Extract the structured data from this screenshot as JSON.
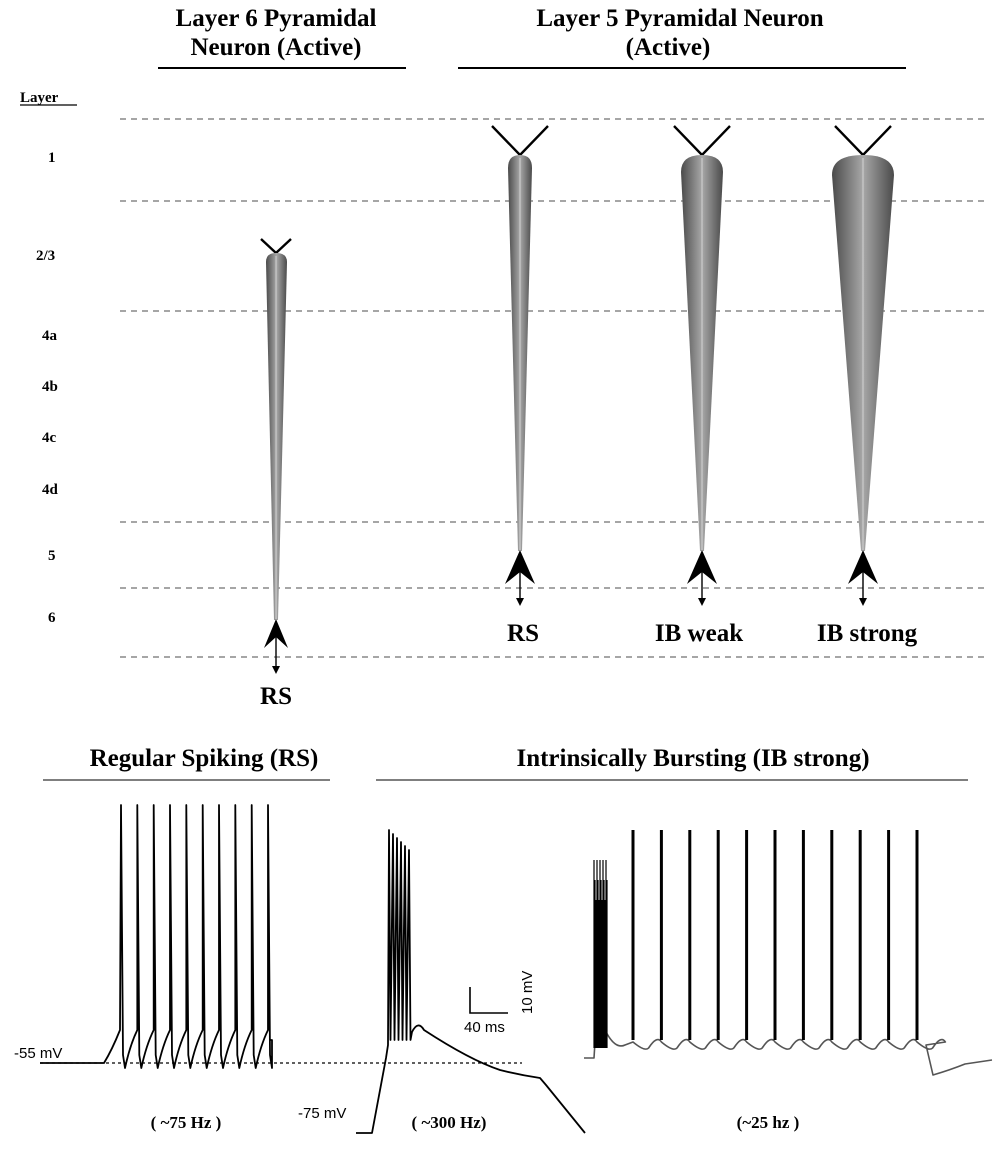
{
  "headers": {
    "layer6": [
      "Layer 6 Pyramidal",
      "Neuron (Active)"
    ],
    "layer5": [
      "Layer 5 Pyramidal Neuron",
      "(Active)"
    ]
  },
  "layer_axis": {
    "title": "Layer",
    "labels": [
      "1",
      "2/3",
      "4a",
      "4b",
      "4c",
      "4d",
      "5",
      "6"
    ]
  },
  "neurons": [
    {
      "label": "RS",
      "layer": "6"
    },
    {
      "label": "RS",
      "layer": "5"
    },
    {
      "label": "IB weak",
      "layer": "5"
    },
    {
      "label": "IB strong",
      "layer": "5"
    }
  ],
  "traces": {
    "rs_heading": "Regular Spiking (RS)",
    "ib_heading": "Intrinsically Bursting (IB strong)",
    "voltage_labels": [
      "-55 mV",
      "-75 mV"
    ],
    "scale_bar": {
      "voltage": "10 mV",
      "time": "40 ms"
    },
    "frequencies": [
      "( ~75 Hz )",
      "( ~300 Hz)",
      "(~25 hz )"
    ],
    "rs_spike_count": 10,
    "ib_tonic_spike_count": 11,
    "ib_burst_spike_count": 6
  }
}
